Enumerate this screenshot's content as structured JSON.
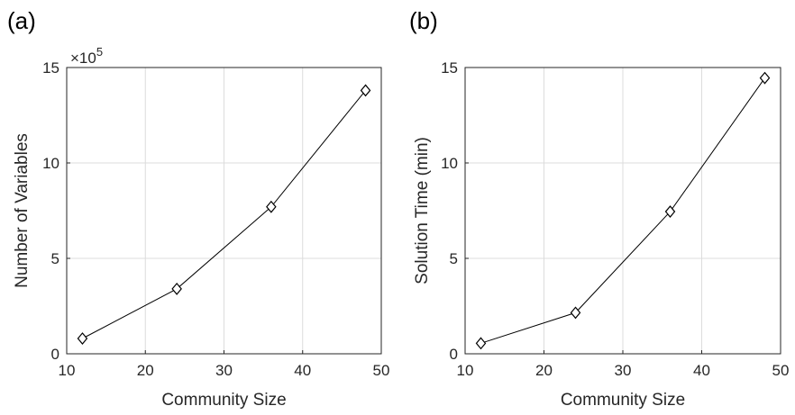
{
  "chart_data": [
    {
      "type": "line",
      "panel_label": "(a)",
      "xlabel": "Community Size",
      "ylabel": "Number of Variables",
      "y_exponent_label": "×10",
      "y_exponent_power": "5",
      "xlim": [
        10,
        50
      ],
      "ylim": [
        0,
        15
      ],
      "xticks": [
        "10",
        "20",
        "30",
        "40",
        "50"
      ],
      "yticks": [
        "0",
        "5",
        "10",
        "15"
      ],
      "grid": true,
      "marker": "diamond",
      "x": [
        12,
        24,
        36,
        48
      ],
      "y": [
        0.8,
        3.4,
        7.7,
        13.8
      ]
    },
    {
      "type": "line",
      "panel_label": "(b)",
      "xlabel": "Community Size",
      "ylabel": "Solution Time (min)",
      "xlim": [
        10,
        50
      ],
      "ylim": [
        0,
        15
      ],
      "xticks": [
        "10",
        "20",
        "30",
        "40",
        "50"
      ],
      "yticks": [
        "0",
        "5",
        "10",
        "15"
      ],
      "grid": true,
      "marker": "diamond",
      "x": [
        12,
        24,
        36,
        48
      ],
      "y": [
        0.55,
        2.15,
        7.45,
        14.45
      ]
    }
  ]
}
